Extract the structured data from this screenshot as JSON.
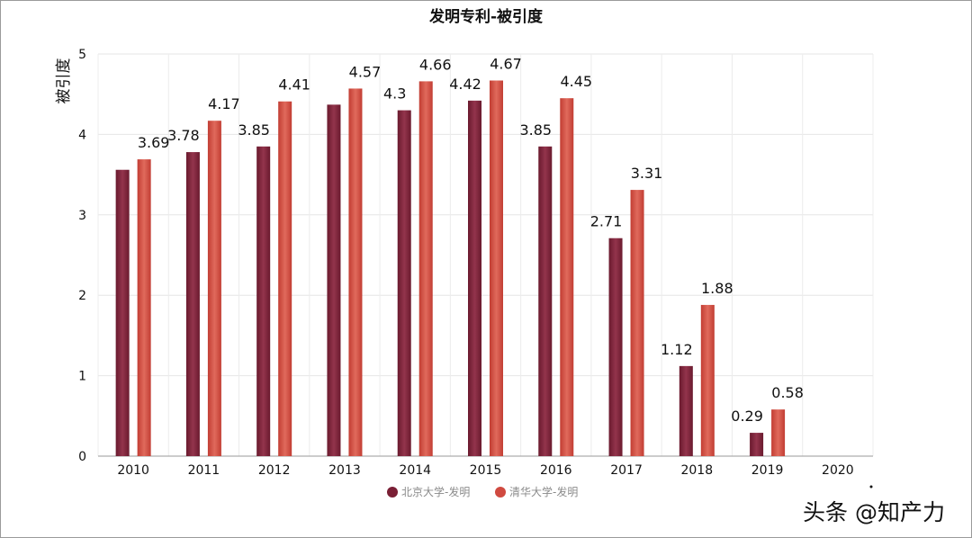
{
  "chart_data": {
    "type": "bar",
    "title": "发明专利-被引度",
    "xlabel": "",
    "ylabel": "被引度",
    "ylim": [
      0,
      5
    ],
    "yticks": [
      0,
      1,
      2,
      3,
      4,
      5
    ],
    "grid": true,
    "legend_position": "bottom-center",
    "categories": [
      "2010",
      "2011",
      "2012",
      "2013",
      "2014",
      "2015",
      "2016",
      "2017",
      "2018",
      "2019",
      "2020"
    ],
    "series": [
      {
        "name": "北京大学-发明",
        "color": "#7a1f35",
        "values": [
          3.56,
          3.78,
          3.85,
          4.37,
          4.3,
          4.42,
          3.85,
          2.71,
          1.12,
          0.29,
          null
        ],
        "labels": [
          null,
          "3.78",
          "3.85",
          null,
          "4.3",
          "4.42",
          "3.85",
          "2.71",
          "1.12",
          "0.29",
          null
        ]
      },
      {
        "name": "清华大学-发明",
        "color": "#d04a40",
        "values": [
          3.69,
          4.17,
          4.41,
          4.57,
          4.66,
          4.67,
          4.45,
          3.31,
          1.88,
          0.58,
          null
        ],
        "labels": [
          "3.69",
          "4.17",
          "4.41",
          "4.57",
          "4.66",
          "4.67",
          "4.45",
          "3.31",
          "1.88",
          "0.58",
          null
        ]
      }
    ]
  },
  "watermark": {
    "text": "头条 @知产力"
  }
}
